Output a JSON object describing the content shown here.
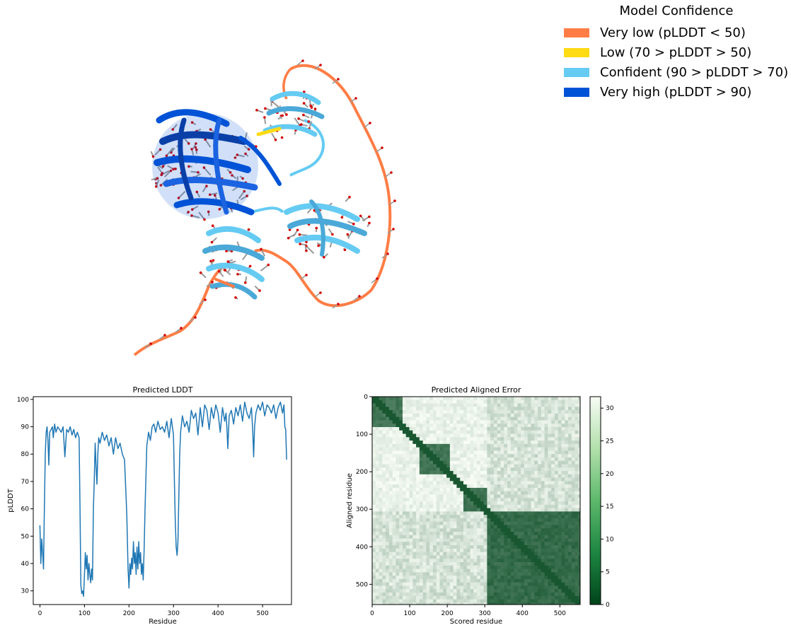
{
  "legend": {
    "title": "Model Confidence",
    "items": [
      {
        "label": "Very low (pLDDT < 50)",
        "color": "#FF7D45"
      },
      {
        "label": "Low (70 > pLDDT > 50)",
        "color": "#FFDB13"
      },
      {
        "label": "Confident (90 > pLDDT > 70)",
        "color": "#65CBF3"
      },
      {
        "label": "Very high (pLDDT > 90)",
        "color": "#0053D6"
      }
    ]
  },
  "structure_view": {
    "colors": {
      "very_high": "#0053D6",
      "confident": "#65CBF3",
      "low": "#FFDB13",
      "very_low": "#FF7D45",
      "sidechain": "#9a9a9a",
      "oxygen": "#d40000"
    }
  },
  "chart_data": [
    {
      "type": "line",
      "title": "Predicted LDDT",
      "xlabel": "Residue",
      "ylabel": "pLDDT",
      "xlim": [
        -15,
        565
      ],
      "ylim": [
        25,
        101
      ],
      "xticks": [
        0,
        100,
        200,
        300,
        400,
        500
      ],
      "yticks": [
        30,
        40,
        50,
        60,
        70,
        80,
        90,
        100
      ],
      "color": "#1f77b4",
      "grid": false,
      "series": [
        {
          "x": [
            0,
            2,
            4,
            6,
            8,
            10,
            12,
            14,
            16,
            18,
            20,
            22,
            25,
            28,
            30,
            33,
            36,
            40,
            44,
            48,
            52,
            56,
            60,
            64,
            68,
            72,
            76,
            80,
            84,
            88,
            90,
            92,
            94,
            96,
            98,
            100,
            102,
            104,
            106,
            108,
            110,
            112,
            114,
            116,
            118,
            120,
            122,
            124,
            126,
            128,
            130,
            132,
            135,
            140,
            145,
            150,
            155,
            160,
            165,
            170,
            175,
            180,
            185,
            190,
            195,
            198,
            200,
            202,
            204,
            206,
            208,
            210,
            212,
            214,
            216,
            218,
            220,
            222,
            224,
            226,
            228,
            230,
            232,
            234,
            236,
            240,
            244,
            248,
            252,
            256,
            260,
            265,
            270,
            275,
            280,
            285,
            290,
            295,
            300,
            302,
            304,
            306,
            308,
            310,
            312,
            314,
            316,
            320,
            325,
            330,
            335,
            340,
            345,
            350,
            355,
            360,
            365,
            370,
            375,
            380,
            385,
            390,
            395,
            400,
            405,
            410,
            415,
            418,
            420,
            422,
            425,
            430,
            435,
            440,
            445,
            450,
            455,
            460,
            465,
            470,
            475,
            478,
            480,
            482,
            485,
            490,
            495,
            500,
            505,
            510,
            515,
            520,
            525,
            530,
            535,
            540,
            545,
            548,
            550,
            552,
            554
          ],
          "y": [
            54,
            40,
            49,
            44,
            38,
            60,
            80,
            88,
            90,
            85,
            76,
            88,
            89,
            90,
            86,
            91,
            88,
            90,
            89,
            88,
            90,
            79,
            89,
            88,
            90,
            87,
            89,
            86,
            88,
            86,
            60,
            32,
            29,
            30,
            28,
            36,
            44,
            38,
            43,
            34,
            40,
            36,
            33,
            38,
            34,
            60,
            70,
            84,
            76,
            69,
            80,
            86,
            84,
            88,
            85,
            87,
            83,
            86,
            80,
            86,
            82,
            84,
            80,
            78,
            58,
            38,
            31,
            40,
            36,
            42,
            38,
            48,
            40,
            44,
            36,
            46,
            38,
            48,
            40,
            44,
            36,
            40,
            34,
            45,
            60,
            83,
            88,
            85,
            90,
            91,
            88,
            92,
            89,
            90,
            88,
            92,
            86,
            93,
            87,
            70,
            55,
            46,
            43,
            48,
            65,
            80,
            88,
            94,
            90,
            92,
            88,
            96,
            93,
            95,
            87,
            97,
            90,
            98,
            96,
            89,
            97,
            93,
            98,
            95,
            88,
            97,
            92,
            95,
            89,
            82,
            94,
            96,
            91,
            97,
            94,
            98,
            92,
            99,
            95,
            93,
            97,
            88,
            79,
            90,
            95,
            98,
            96,
            99,
            94,
            98,
            97,
            95,
            98,
            93,
            97,
            99,
            95,
            98,
            90,
            89,
            78
          ]
        }
      ]
    },
    {
      "type": "heatmap",
      "title": "Predicted Aligned Error",
      "xlabel": "Scored residue",
      "ylabel": "Aligned residue",
      "xlim": [
        0,
        554
      ],
      "ylim": [
        554,
        0
      ],
      "xticks": [
        0,
        100,
        200,
        300,
        400,
        500
      ],
      "yticks": [
        0,
        100,
        200,
        300,
        400,
        500
      ],
      "colorbar": {
        "range": [
          0,
          31.75
        ],
        "ticks": [
          0,
          5,
          10,
          15,
          20,
          25,
          30
        ],
        "colormap": "Greens_r",
        "low_color": "#00441b",
        "high_color": "#f7fcf5"
      },
      "domains": [
        [
          0,
          85
        ],
        [
          130,
          205
        ],
        [
          240,
          305
        ],
        [
          310,
          554
        ]
      ]
    }
  ]
}
